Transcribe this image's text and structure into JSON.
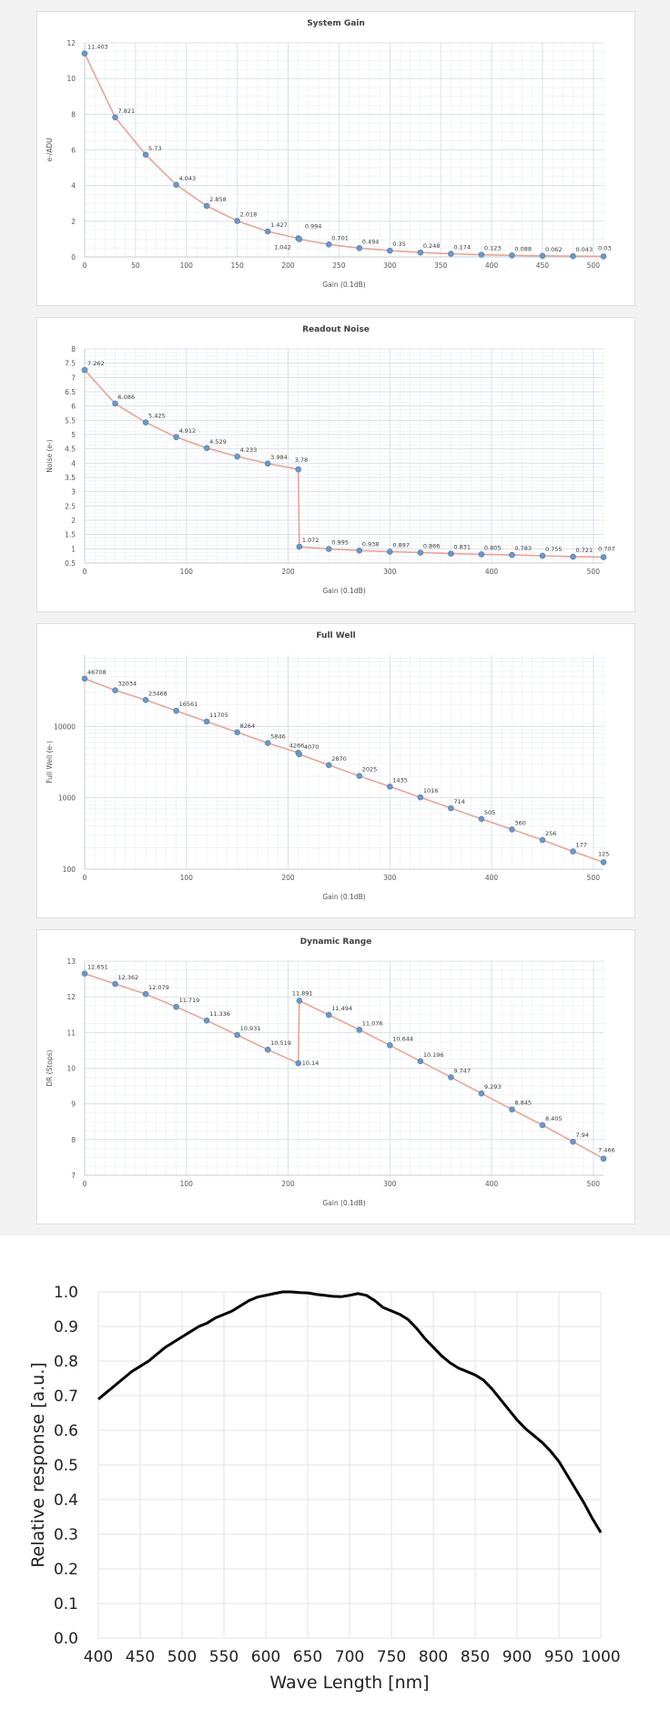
{
  "chart_data": [
    {
      "type": "line",
      "title": "System Gain",
      "xlabel": "Gain (0.1dB)",
      "ylabel": "e-/ADU",
      "xlim": [
        0,
        510
      ],
      "ylim": [
        0,
        12
      ],
      "x_ticks": [
        0,
        50,
        100,
        150,
        200,
        250,
        300,
        350,
        400,
        450,
        500
      ],
      "y_ticks": [
        0,
        2,
        4,
        6,
        8,
        10,
        12
      ],
      "grid": true,
      "series": [
        {
          "x": [
            0,
            30,
            60,
            90,
            120,
            150,
            180,
            210,
            211,
            240,
            270,
            300,
            330,
            360,
            390,
            420,
            450,
            480,
            510
          ],
          "y": [
            11.403,
            7.821,
            5.73,
            4.043,
            2.858,
            2.018,
            1.427,
            1.042,
            0.994,
            0.701,
            0.494,
            0.35,
            0.248,
            0.174,
            0.123,
            0.088,
            0.062,
            0.043,
            0.03
          ],
          "labels": [
            "11.403",
            "7.821",
            "5.73",
            "4.043",
            "2.858",
            "2.018",
            "1.427",
            "1.042",
            "0.994",
            "0.701",
            "0.494",
            "0.35",
            "0.248",
            "0.174",
            "0.123",
            "0.088",
            "0.062",
            "0.043",
            "0.03"
          ]
        }
      ]
    },
    {
      "type": "line",
      "title": "Readout Noise",
      "xlabel": "Gain (0.1dB)",
      "ylabel": "Noise (e-)",
      "xlim": [
        0,
        510
      ],
      "ylim": [
        0.5,
        8
      ],
      "x_ticks": [
        0,
        100,
        200,
        300,
        400,
        500
      ],
      "y_ticks": [
        0.5,
        1,
        1.5,
        2,
        2.5,
        3,
        3.5,
        4,
        4.5,
        5,
        5.5,
        6,
        6.5,
        7,
        7.5,
        8
      ],
      "grid": true,
      "series": [
        {
          "x": [
            0,
            30,
            60,
            90,
            120,
            150,
            180,
            210,
            211,
            240,
            270,
            300,
            330,
            360,
            390,
            420,
            450,
            480,
            510
          ],
          "y": [
            7.262,
            6.086,
            5.425,
            4.912,
            4.529,
            4.233,
            3.984,
            3.78,
            1.072,
            0.995,
            0.938,
            0.897,
            0.866,
            0.831,
            0.805,
            0.783,
            0.755,
            0.721,
            0.707
          ],
          "labels": [
            "7.262",
            "6.086",
            "5.425",
            "4.912",
            "4.529",
            "4.233",
            "3.984",
            "3.78",
            "1.072",
            "0.995",
            "0.938",
            "0.897",
            "0.866",
            "0.831",
            "0.805",
            "0.783",
            "0.755",
            "0.721",
            "0.707"
          ]
        }
      ]
    },
    {
      "type": "line",
      "title": "Full Well",
      "xlabel": "Gain (0.1dB)",
      "ylabel": "Full Well (e-)",
      "yscale": "log",
      "xlim": [
        0,
        510
      ],
      "ylim": [
        100,
        100000
      ],
      "x_ticks": [
        0,
        100,
        200,
        300,
        400,
        500
      ],
      "y_ticks": [
        100,
        1000,
        10000
      ],
      "grid": true,
      "series": [
        {
          "x": [
            0,
            30,
            60,
            90,
            120,
            150,
            180,
            210,
            211,
            240,
            270,
            300,
            330,
            360,
            390,
            420,
            450,
            480,
            510
          ],
          "y": [
            46708,
            32034,
            23468,
            16561,
            11705,
            8264,
            5846,
            4266,
            4070,
            2870,
            2025,
            1435,
            1016,
            714,
            505,
            360,
            256,
            177,
            125
          ],
          "labels": [
            "46708",
            "32034",
            "23468",
            "16561",
            "11705",
            "8264",
            "5846",
            "4266",
            "4070",
            "2870",
            "2025",
            "1435",
            "1016",
            "714",
            "505",
            "360",
            "256",
            "177",
            "125"
          ]
        }
      ]
    },
    {
      "type": "line",
      "title": "Dynamic Range",
      "xlabel": "Gain (0.1dB)",
      "ylabel": "DR (Stops)",
      "xlim": [
        0,
        510
      ],
      "ylim": [
        7,
        13
      ],
      "x_ticks": [
        0,
        100,
        200,
        300,
        400,
        500
      ],
      "y_ticks": [
        7,
        8,
        9,
        10,
        11,
        12,
        13
      ],
      "grid": true,
      "series": [
        {
          "x": [
            0,
            30,
            60,
            90,
            120,
            150,
            180,
            210,
            211,
            240,
            270,
            300,
            330,
            360,
            390,
            420,
            450,
            480,
            510
          ],
          "y": [
            12.651,
            12.362,
            12.079,
            11.719,
            11.336,
            10.931,
            10.519,
            10.14,
            11.891,
            11.494,
            11.076,
            10.644,
            10.196,
            9.747,
            9.293,
            8.845,
            8.405,
            7.94,
            7.466
          ],
          "labels": [
            "12.651",
            "12.362",
            "12.079",
            "11.719",
            "11.336",
            "10.931",
            "10.519",
            "10.14",
            "11.891",
            "11.494",
            "11.076",
            "10.644",
            "10.196",
            "9.747",
            "9.293",
            "8.845",
            "8.405",
            "7.94",
            "7.466"
          ]
        }
      ]
    },
    {
      "type": "line",
      "title": "",
      "xlabel": "Wave Length [nm]",
      "ylabel": "Relative response [a.u.]",
      "xlim": [
        400,
        1000
      ],
      "ylim": [
        0,
        1
      ],
      "x_ticks": [
        400,
        450,
        500,
        550,
        600,
        650,
        700,
        750,
        800,
        850,
        900,
        950,
        1000
      ],
      "y_ticks": [
        0,
        0.1,
        0.2,
        0.3,
        0.4,
        0.5,
        0.6,
        0.7,
        0.8,
        0.9,
        1.0
      ],
      "grid": true,
      "series": [
        {
          "x": [
            400,
            410,
            420,
            430,
            440,
            450,
            460,
            470,
            480,
            490,
            500,
            510,
            520,
            530,
            540,
            550,
            560,
            570,
            580,
            590,
            600,
            610,
            620,
            630,
            640,
            650,
            660,
            670,
            680,
            690,
            700,
            710,
            720,
            730,
            740,
            750,
            760,
            770,
            780,
            790,
            800,
            810,
            820,
            830,
            840,
            850,
            860,
            870,
            880,
            890,
            900,
            910,
            920,
            930,
            940,
            950,
            960,
            970,
            980,
            990,
            1000
          ],
          "y": [
            0.69,
            0.71,
            0.73,
            0.75,
            0.77,
            0.785,
            0.8,
            0.82,
            0.84,
            0.855,
            0.87,
            0.885,
            0.9,
            0.91,
            0.925,
            0.935,
            0.945,
            0.96,
            0.975,
            0.985,
            0.99,
            0.995,
            1.0,
            1.0,
            0.998,
            0.997,
            0.993,
            0.99,
            0.987,
            0.986,
            0.99,
            0.995,
            0.99,
            0.975,
            0.955,
            0.945,
            0.935,
            0.92,
            0.895,
            0.865,
            0.84,
            0.815,
            0.795,
            0.78,
            0.77,
            0.76,
            0.745,
            0.72,
            0.69,
            0.66,
            0.63,
            0.605,
            0.585,
            0.565,
            0.54,
            0.51,
            0.47,
            0.43,
            0.39,
            0.345,
            0.305
          ]
        }
      ]
    }
  ]
}
